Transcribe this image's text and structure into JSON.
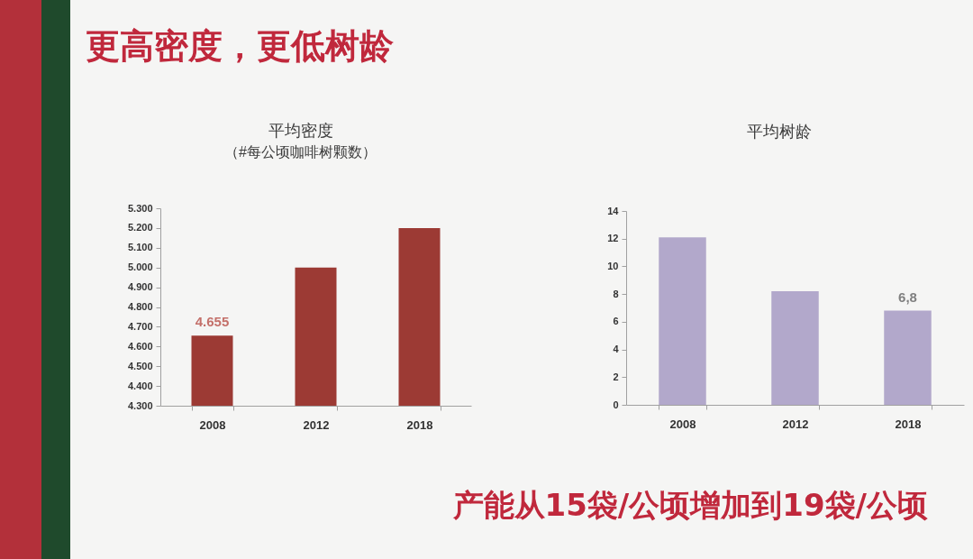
{
  "chart_data": [
    {
      "type": "other",
      "title": "更高密度，更低树龄",
      "annotations": [
        "产能从15袋/公顷增加到19袋/公顷"
      ]
    },
    {
      "type": "bar",
      "title": "平均密度",
      "subtitle": "（#每公顷咖啡树颗数）",
      "categories": [
        "2008",
        "2012",
        "2018"
      ],
      "values": [
        4.655,
        5.0,
        5.2
      ],
      "color": "#9c3a34",
      "value_labels": [
        "4.655",
        null,
        null
      ],
      "ylim": [
        4.3,
        5.3
      ],
      "yticks": [
        {
          "value": 4.3,
          "label": "4.300"
        },
        {
          "value": 4.4,
          "label": "4.400"
        },
        {
          "value": 4.5,
          "label": "4.500"
        },
        {
          "value": 4.6,
          "label": "4.600"
        },
        {
          "value": 4.7,
          "label": "4.700"
        },
        {
          "value": 4.8,
          "label": "4.800"
        },
        {
          "value": 4.9,
          "label": "4.900"
        },
        {
          "value": 5.0,
          "label": "5.000"
        },
        {
          "value": 5.1,
          "label": "5.100"
        },
        {
          "value": 5.2,
          "label": "5.200"
        },
        {
          "value": 5.3,
          "label": "5.300"
        }
      ]
    },
    {
      "type": "bar",
      "title": "平均树龄",
      "categories": [
        "2008",
        "2012",
        "2018"
      ],
      "values": [
        12.1,
        8.2,
        6.8
      ],
      "color": "#b2a8cb",
      "value_labels": [
        null,
        null,
        "6,8"
      ],
      "ylim": [
        0,
        14
      ],
      "yticks": [
        0,
        2,
        4,
        6,
        8,
        10,
        12,
        14
      ]
    }
  ]
}
